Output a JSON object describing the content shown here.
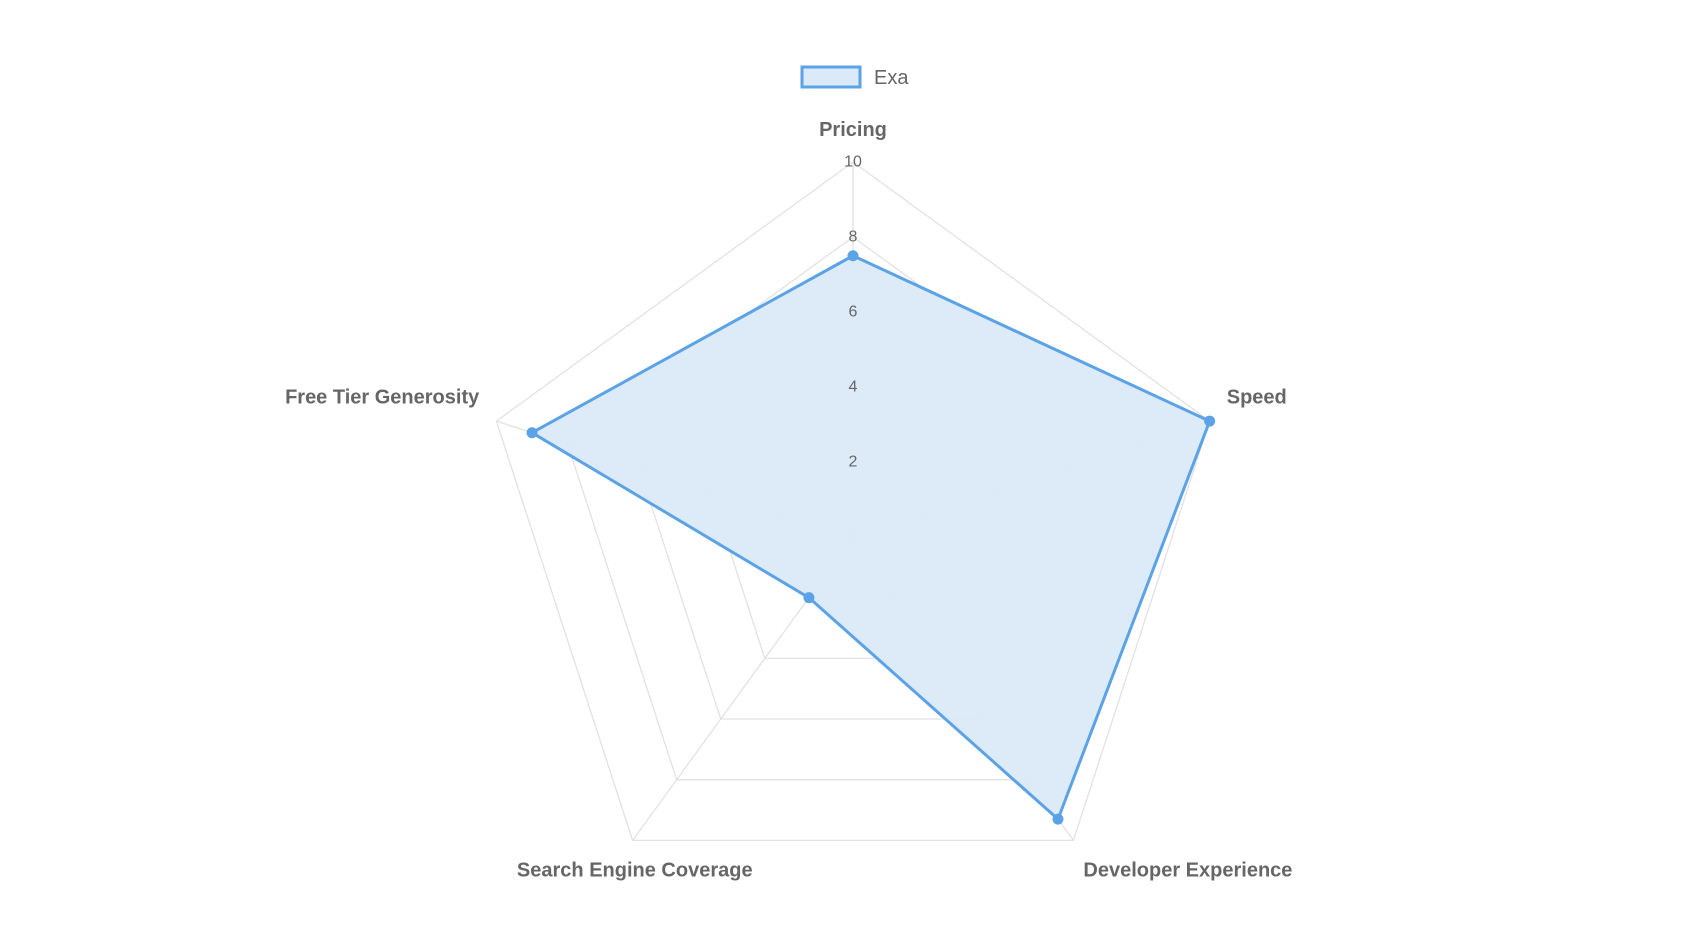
{
  "chart_data": {
    "type": "radar",
    "axes": [
      "Pricing",
      "Speed",
      "Developer Experience",
      "Search Engine Coverage",
      "Free Tier Generosity"
    ],
    "r_range": [
      0,
      10
    ],
    "ticks": [
      "2",
      "4",
      "6",
      "8",
      "10"
    ],
    "tick_values": [
      2,
      4,
      6,
      8,
      10
    ],
    "grid": true,
    "legend_position": "top",
    "series": [
      {
        "name": "Exa",
        "values": [
          7.5,
          10,
          9.3,
          2,
          9
        ],
        "color": "#5ba3e6",
        "fill": "#dbeaf9"
      }
    ]
  },
  "colors": {
    "grid": "#e2e2e2",
    "text": "#666666",
    "tick_backdrop": "#ffffff"
  }
}
